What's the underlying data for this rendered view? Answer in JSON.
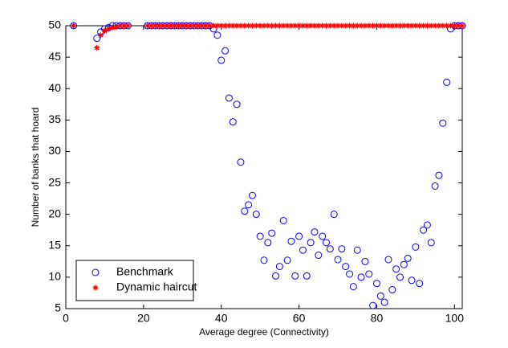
{
  "chart_data": {
    "type": "scatter",
    "xlabel": "Average degree (Connectivity)",
    "ylabel": "Number of banks that hoard",
    "x": [
      2,
      8,
      9,
      10,
      11,
      12,
      13,
      14,
      15,
      16,
      21,
      22,
      23,
      24,
      25,
      26,
      27,
      28,
      29,
      30,
      31,
      32,
      33,
      34,
      35,
      36,
      37,
      38,
      39,
      40,
      41,
      42,
      43,
      44,
      45,
      46,
      47,
      48,
      49,
      50,
      51,
      52,
      53,
      54,
      55,
      56,
      57,
      58,
      59,
      60,
      61,
      62,
      63,
      64,
      65,
      66,
      67,
      68,
      69,
      70,
      71,
      72,
      73,
      74,
      75,
      76,
      77,
      78,
      79,
      80,
      81,
      82,
      83,
      84,
      85,
      86,
      87,
      88,
      89,
      90,
      91,
      92,
      93,
      94,
      95,
      96,
      97,
      98,
      99,
      100,
      101,
      102
    ],
    "series": [
      {
        "name": "Benchmark",
        "color": "#0000ff",
        "marker": "o",
        "values": [
          50,
          48,
          49,
          49.5,
          49.7,
          50,
          50,
          50,
          50,
          50,
          50,
          50,
          50,
          50,
          50,
          50,
          50,
          50,
          50,
          50,
          50,
          50,
          50,
          50,
          50,
          50,
          50,
          49.5,
          48.5,
          44.5,
          46,
          38.5,
          34.7,
          37.5,
          28.3,
          20.5,
          21.5,
          23,
          20,
          16.5,
          12.7,
          15.5,
          17,
          10.2,
          11.7,
          19,
          12.7,
          15.7,
          10.2,
          16.5,
          14.3,
          10.2,
          15.5,
          17.2,
          13.5,
          16.5,
          15.5,
          14.5,
          20,
          12.8,
          14.5,
          11.7,
          10.5,
          8.5,
          14.3,
          10,
          12.5,
          10.5,
          5.5,
          9,
          7,
          6,
          12.8,
          8,
          11.3,
          10,
          12,
          13,
          9.5,
          14.8,
          9,
          17.5,
          18.3,
          15.5,
          24.5,
          26.2,
          34.5,
          41,
          49.5,
          50,
          50,
          50
        ]
      },
      {
        "name": "Dynamic haircut",
        "color": "#ff0000",
        "marker": "*",
        "values": [
          50,
          46.5,
          48.5,
          49.2,
          49.5,
          49.7,
          49.8,
          50,
          50,
          50,
          50,
          50,
          50,
          50,
          50,
          50,
          50,
          50,
          50,
          50,
          50,
          50,
          50,
          50,
          50,
          50,
          50,
          50,
          50,
          50,
          50,
          50,
          50,
          50,
          50,
          50,
          50,
          50,
          50,
          50,
          50,
          50,
          50,
          50,
          50,
          50,
          50,
          50,
          50,
          50,
          50,
          50,
          50,
          50,
          50,
          50,
          50,
          50,
          50,
          50,
          50,
          50,
          50,
          50,
          50,
          50,
          50,
          50,
          50,
          50,
          50,
          50,
          50,
          50,
          50,
          50,
          50,
          50,
          50,
          50,
          50,
          50,
          50,
          50,
          50,
          50,
          50,
          50,
          50,
          50,
          50,
          50
        ]
      }
    ],
    "xlim": [
      0,
      102
    ],
    "xticks": [
      0,
      20,
      40,
      60,
      80,
      100
    ],
    "ylim": [
      5,
      50
    ],
    "yticks": [
      5,
      10,
      15,
      20,
      25,
      30,
      35,
      40,
      45,
      50
    ],
    "grid": false,
    "legend": "lower left"
  }
}
